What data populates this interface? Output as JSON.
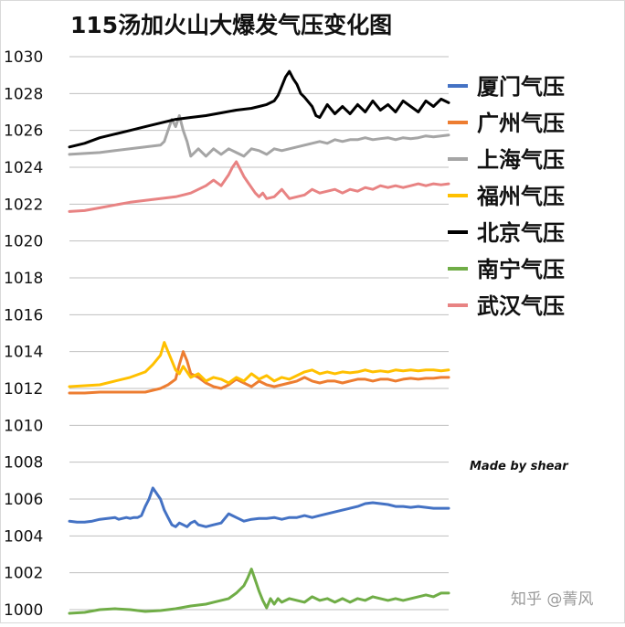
{
  "chart_data": {
    "type": "line",
    "title": "115汤加火山大爆发气压变化图",
    "xlabel": "",
    "ylabel": "",
    "ylim": [
      1000,
      1030
    ],
    "yticks": [
      1000,
      1002,
      1004,
      1006,
      1008,
      1010,
      1012,
      1014,
      1016,
      1018,
      1020,
      1022,
      1024,
      1026,
      1028,
      1030
    ],
    "grid": "horizontal",
    "legend_position": "right",
    "credit": "Made by shear",
    "watermark": "知乎 @菁风",
    "series": [
      {
        "name": "厦门气压",
        "color": "#4472C4",
        "x": [
          0,
          2,
          4,
          6,
          8,
          10,
          12,
          13,
          14,
          15,
          16,
          17,
          18,
          19,
          20,
          21,
          22,
          24,
          25,
          26,
          27,
          28,
          29,
          30,
          31,
          32,
          33,
          34,
          36,
          38,
          40,
          42,
          44,
          46,
          48,
          50,
          52,
          54,
          56,
          58,
          60,
          62,
          64,
          66,
          68,
          70,
          72,
          74,
          76,
          78,
          80,
          82,
          84,
          86,
          88,
          90,
          92,
          94,
          96,
          98,
          100
        ],
        "values": [
          1004.8,
          1004.75,
          1004.75,
          1004.8,
          1004.9,
          1004.95,
          1005.0,
          1004.9,
          1004.95,
          1005.0,
          1004.95,
          1005.0,
          1005.0,
          1005.1,
          1005.6,
          1006.0,
          1006.6,
          1006.0,
          1005.4,
          1005.0,
          1004.6,
          1004.5,
          1004.7,
          1004.6,
          1004.5,
          1004.7,
          1004.8,
          1004.6,
          1004.5,
          1004.6,
          1004.7,
          1005.2,
          1005.0,
          1004.8,
          1004.9,
          1004.95,
          1004.95,
          1005.0,
          1004.9,
          1005.0,
          1005.0,
          1005.1,
          1005.0,
          1005.1,
          1005.2,
          1005.3,
          1005.4,
          1005.5,
          1005.6,
          1005.75,
          1005.8,
          1005.75,
          1005.7,
          1005.6,
          1005.6,
          1005.55,
          1005.6,
          1005.55,
          1005.5,
          1005.5,
          1005.5
        ]
      },
      {
        "name": "广州气压",
        "color": "#ED7D31",
        "x": [
          0,
          4,
          8,
          12,
          16,
          20,
          22,
          24,
          26,
          28,
          29,
          30,
          31,
          32,
          34,
          36,
          38,
          40,
          42,
          44,
          46,
          48,
          50,
          52,
          54,
          56,
          58,
          60,
          62,
          64,
          66,
          68,
          70,
          72,
          74,
          76,
          78,
          80,
          82,
          84,
          86,
          88,
          90,
          92,
          94,
          96,
          98,
          100
        ],
        "values": [
          1011.75,
          1011.75,
          1011.8,
          1011.8,
          1011.8,
          1011.8,
          1011.9,
          1012.0,
          1012.2,
          1012.5,
          1013.3,
          1014.0,
          1013.5,
          1012.8,
          1012.6,
          1012.3,
          1012.1,
          1012.0,
          1012.2,
          1012.5,
          1012.3,
          1012.1,
          1012.4,
          1012.2,
          1012.1,
          1012.2,
          1012.3,
          1012.4,
          1012.6,
          1012.4,
          1012.3,
          1012.4,
          1012.4,
          1012.3,
          1012.4,
          1012.5,
          1012.5,
          1012.4,
          1012.5,
          1012.5,
          1012.4,
          1012.5,
          1012.55,
          1012.5,
          1012.55,
          1012.55,
          1012.6,
          1012.6
        ]
      },
      {
        "name": "上海气压",
        "color": "#A5A5A5",
        "x": [
          0,
          4,
          8,
          12,
          16,
          20,
          22,
          24,
          25,
          26,
          27,
          28,
          29,
          30,
          31,
          32,
          34,
          36,
          38,
          40,
          42,
          44,
          46,
          48,
          50,
          52,
          54,
          56,
          58,
          60,
          62,
          64,
          66,
          68,
          70,
          72,
          74,
          76,
          78,
          80,
          82,
          84,
          86,
          88,
          90,
          92,
          94,
          96,
          98,
          100
        ],
        "values": [
          1024.7,
          1024.75,
          1024.8,
          1024.9,
          1025.0,
          1025.1,
          1025.15,
          1025.2,
          1025.4,
          1026.0,
          1026.6,
          1026.2,
          1026.8,
          1026.0,
          1025.4,
          1024.6,
          1025.0,
          1024.6,
          1025.0,
          1024.7,
          1025.0,
          1024.8,
          1024.6,
          1025.0,
          1024.9,
          1024.7,
          1025.0,
          1024.9,
          1025.0,
          1025.1,
          1025.2,
          1025.3,
          1025.4,
          1025.3,
          1025.5,
          1025.4,
          1025.5,
          1025.5,
          1025.6,
          1025.5,
          1025.55,
          1025.6,
          1025.5,
          1025.6,
          1025.55,
          1025.6,
          1025.7,
          1025.65,
          1025.7,
          1025.75
        ]
      },
      {
        "name": "福州气压",
        "color": "#FFC000",
        "x": [
          0,
          4,
          8,
          12,
          16,
          20,
          22,
          24,
          25,
          26,
          27,
          28,
          29,
          30,
          32,
          34,
          36,
          38,
          40,
          42,
          44,
          46,
          48,
          50,
          52,
          54,
          56,
          58,
          60,
          62,
          64,
          66,
          68,
          70,
          72,
          74,
          76,
          78,
          80,
          82,
          84,
          86,
          88,
          90,
          92,
          94,
          96,
          98,
          100
        ],
        "values": [
          1012.1,
          1012.15,
          1012.2,
          1012.4,
          1012.6,
          1012.9,
          1013.3,
          1013.8,
          1014.5,
          1014.0,
          1013.5,
          1013.0,
          1012.8,
          1013.2,
          1012.6,
          1012.8,
          1012.4,
          1012.6,
          1012.5,
          1012.3,
          1012.6,
          1012.4,
          1012.8,
          1012.5,
          1012.7,
          1012.4,
          1012.6,
          1012.5,
          1012.7,
          1012.9,
          1013.0,
          1012.8,
          1012.9,
          1012.8,
          1012.9,
          1012.85,
          1012.9,
          1013.0,
          1012.9,
          1012.95,
          1012.9,
          1013.0,
          1012.95,
          1013.0,
          1012.95,
          1013.0,
          1013.0,
          1012.95,
          1013.0
        ]
      },
      {
        "name": "北京气压",
        "color": "#000000",
        "x": [
          0,
          4,
          8,
          12,
          16,
          20,
          24,
          28,
          32,
          36,
          40,
          44,
          46,
          48,
          50,
          52,
          54,
          55,
          56,
          57,
          58,
          59,
          60,
          61,
          62,
          64,
          65,
          66,
          68,
          70,
          72,
          74,
          76,
          78,
          80,
          82,
          84,
          86,
          88,
          90,
          92,
          94,
          96,
          98,
          100
        ],
        "values": [
          1025.1,
          1025.3,
          1025.6,
          1025.8,
          1026.0,
          1026.2,
          1026.4,
          1026.6,
          1026.7,
          1026.8,
          1026.95,
          1027.1,
          1027.15,
          1027.2,
          1027.3,
          1027.4,
          1027.6,
          1027.9,
          1028.4,
          1028.9,
          1029.2,
          1028.8,
          1028.5,
          1028.0,
          1027.8,
          1027.3,
          1026.8,
          1026.7,
          1027.4,
          1026.9,
          1027.3,
          1026.9,
          1027.4,
          1027.0,
          1027.6,
          1027.1,
          1027.4,
          1027.0,
          1027.6,
          1027.3,
          1027.0,
          1027.6,
          1027.3,
          1027.7,
          1027.5
        ]
      },
      {
        "name": "南宁气压",
        "color": "#70AD47",
        "x": [
          0,
          4,
          8,
          12,
          16,
          20,
          24,
          28,
          32,
          36,
          38,
          40,
          42,
          44,
          46,
          47,
          48,
          49,
          50,
          51,
          52,
          53,
          54,
          55,
          56,
          58,
          60,
          62,
          64,
          66,
          68,
          70,
          72,
          74,
          76,
          78,
          80,
          82,
          84,
          86,
          88,
          90,
          92,
          94,
          96,
          98,
          100
        ],
        "values": [
          999.8,
          999.85,
          1000.0,
          1000.05,
          1000.0,
          999.9,
          999.95,
          1000.05,
          1000.2,
          1000.3,
          1000.4,
          1000.5,
          1000.6,
          1000.9,
          1001.3,
          1001.7,
          1002.2,
          1001.6,
          1001.0,
          1000.5,
          1000.1,
          1000.6,
          1000.3,
          1000.6,
          1000.4,
          1000.6,
          1000.5,
          1000.4,
          1000.7,
          1000.5,
          1000.6,
          1000.4,
          1000.6,
          1000.4,
          1000.6,
          1000.5,
          1000.7,
          1000.6,
          1000.5,
          1000.6,
          1000.5,
          1000.6,
          1000.7,
          1000.8,
          1000.7,
          1000.9,
          1000.9
        ]
      },
      {
        "name": "武汉气压",
        "color": "#E88383",
        "x": [
          0,
          4,
          8,
          12,
          16,
          20,
          24,
          28,
          30,
          32,
          34,
          36,
          38,
          40,
          42,
          43,
          44,
          45,
          46,
          47,
          48,
          49,
          50,
          51,
          52,
          54,
          56,
          58,
          60,
          62,
          64,
          66,
          68,
          70,
          72,
          74,
          76,
          78,
          80,
          82,
          84,
          86,
          88,
          90,
          92,
          94,
          96,
          98,
          100
        ],
        "values": [
          1021.6,
          1021.65,
          1021.8,
          1021.95,
          1022.1,
          1022.2,
          1022.3,
          1022.4,
          1022.5,
          1022.6,
          1022.8,
          1023.0,
          1023.3,
          1023.0,
          1023.6,
          1024.0,
          1024.3,
          1023.9,
          1023.5,
          1023.2,
          1022.9,
          1022.6,
          1022.4,
          1022.6,
          1022.3,
          1022.4,
          1022.8,
          1022.3,
          1022.4,
          1022.5,
          1022.8,
          1022.6,
          1022.7,
          1022.8,
          1022.6,
          1022.8,
          1022.7,
          1022.9,
          1022.8,
          1023.0,
          1022.9,
          1023.0,
          1022.9,
          1023.0,
          1023.1,
          1023.0,
          1023.1,
          1023.05,
          1023.1
        ]
      }
    ]
  }
}
